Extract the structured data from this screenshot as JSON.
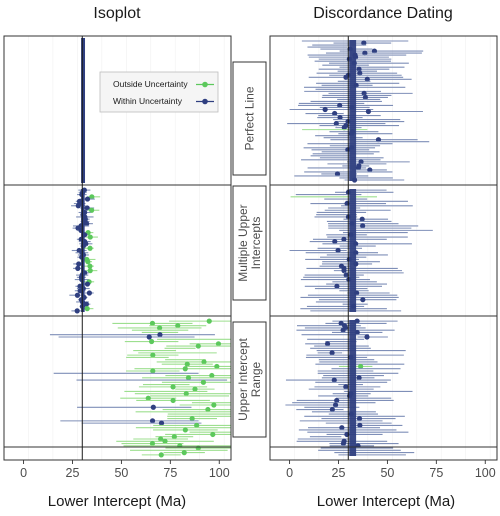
{
  "chart_data": {
    "type": "scatter",
    "titles": [
      "Isoplot",
      "Discordance Dating"
    ],
    "xlabel": "Lower Intercept (Ma)",
    "xlim": [
      -10,
      106
    ],
    "xticks": [
      "0",
      "25",
      "50",
      "75",
      "100"
    ],
    "true_lower_intercept": 30,
    "facets": [
      "Perfect Line",
      "Multiple Upper Intercepts",
      "Upper Intercept Range"
    ],
    "facet_lines": {
      "Perfect Line": [
        "Perfect Line"
      ],
      "Multiple Upper Intercepts": [
        "Multiple Upper",
        "Intercepts"
      ],
      "Upper Intercept Range": [
        "Upper Intercept",
        "Range"
      ]
    },
    "legend": [
      {
        "label": "Outside Uncertainty",
        "color": "#5cc85c"
      },
      {
        "label": "Within Uncertainty",
        "color": "#2f3f80"
      }
    ],
    "colors": {
      "within": "#2f3f80",
      "outside": "#5cc85c",
      "within_bar": "#7f8fb8",
      "outside_bar": "#9ddf8f",
      "vline": "#1a1a1a"
    },
    "note": ""
  }
}
